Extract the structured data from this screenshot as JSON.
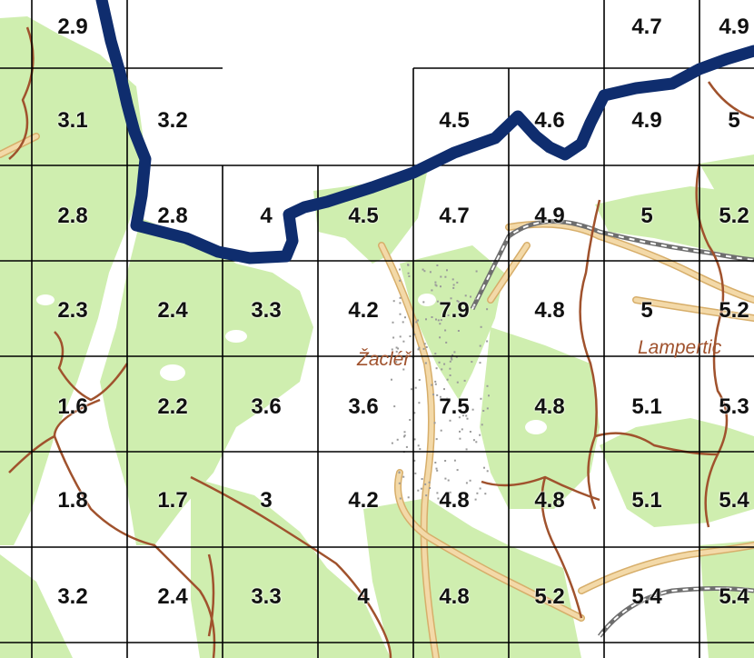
{
  "map": {
    "colors": {
      "forest": "#cfeeaf",
      "background": "#ffffff",
      "border_line": "#0f2d6e",
      "grid": "#000000",
      "boundary": "#a0522d",
      "road_fill": "#f3d9a8",
      "road_edge": "#d7ae6a",
      "railway": "#6e6e6e",
      "place_label": "#a0522d"
    },
    "places": [
      {
        "name": "Žacléř"
      },
      {
        "name": "Lampertic"
      }
    ],
    "grid_values": [
      [
        "2.9",
        "",
        "",
        "",
        "",
        "",
        "4.7",
        "4.9"
      ],
      [
        "3.1",
        "3.2",
        "",
        "",
        "4.5",
        "4.6",
        "4.9",
        "5"
      ],
      [
        "2.8",
        "2.8",
        "4",
        "4.5",
        "4.7",
        "4.9",
        "5",
        "5.2"
      ],
      [
        "2.3",
        "2.4",
        "3.3",
        "4.2",
        "7.9",
        "4.8",
        "5",
        "5.2"
      ],
      [
        "1.6",
        "2.2",
        "3.6",
        "3.6",
        "7.5",
        "4.8",
        "5.1",
        "5.3"
      ],
      [
        "1.8",
        "1.7",
        "3",
        "4.2",
        "4.8",
        "4.8",
        "5.1",
        "5.4"
      ],
      [
        "3.2",
        "2.4",
        "3.3",
        "4",
        "4.8",
        "5.2",
        "5.4",
        "5.4"
      ]
    ]
  }
}
